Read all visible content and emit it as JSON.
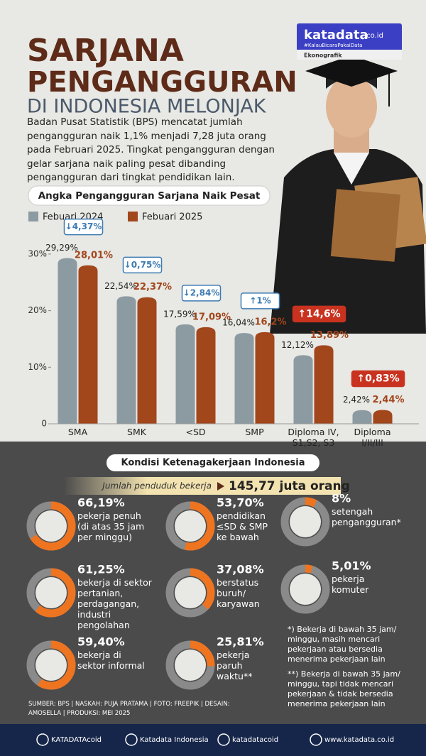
{
  "header": {
    "title_lines": [
      "SARJANA",
      "PENGANGGURAN",
      "DI INDONESIA MELONJAK"
    ],
    "brand": "katadata",
    "brand_suffix": ".co.id",
    "tagline": "#KalauBicaraPakaiData",
    "category": "Ekonografik",
    "intro": "Badan Pusat Statistik (BPS) mencatat jumlah pengangguran naik 1,1% menjadi 7,28 juta orang pada Februari 2025. Tingkat pengangguran dengan gelar sarjana naik paling pesat dibanding pengangguran dari tingkat pendidikan lain."
  },
  "chart_data": {
    "type": "bar",
    "title": "Angka Pengangguran Sarjana Naik Pesat",
    "categories": [
      "SMA",
      "SMK",
      "<SD",
      "SMP",
      "Diploma IV,\nS1,S2, S3",
      "Diploma\nI/II/III"
    ],
    "series": [
      {
        "name": "Febuari 2024",
        "color": "#8c9aa2",
        "values": [
          29.29,
          22.54,
          17.59,
          16.04,
          12.12,
          2.42
        ],
        "value_labels": [
          "29,29%",
          "22,54%",
          "17,59%",
          "16,04%",
          "12,12%",
          "2,42%"
        ]
      },
      {
        "name": "Febuari 2025",
        "color": "#a2461c",
        "values": [
          28.01,
          22.37,
          17.09,
          16.2,
          13.89,
          2.44
        ],
        "value_labels": [
          "28,01%",
          "22,37%",
          "17,09%",
          "16,2%",
          "13,89%",
          "2,44%"
        ]
      }
    ],
    "change_labels": [
      "↓4,37%",
      "↓0,75%",
      "↓2,84%",
      "↑1%",
      "↑14,6%",
      "↑0,83%"
    ],
    "change_styles": [
      "outline",
      "outline",
      "outline",
      "outline",
      "filled",
      "filled"
    ],
    "ylim": [
      0,
      32
    ],
    "yticks": [
      0,
      {
        "value": 10,
        "label": "10%"
      },
      {
        "value": 20,
        "label": "20%"
      },
      {
        "value": 30,
        "label": "30%"
      }
    ],
    "grid": false
  },
  "employment": {
    "title": "Kondisi Ketenagakerjaan Indonesia",
    "workforce_label": "Jumlah penduduk bekerja",
    "workforce_value": "145,77 juta orang",
    "stats": [
      {
        "value": 66.19,
        "label": "66,19%",
        "text": "pekerja penuh\n(di atas 35 jam\nper minggu)"
      },
      {
        "value": 53.7,
        "label": "53,70%",
        "text": "pendidikan\n≤SD & SMP\nke bawah"
      },
      {
        "value": 8,
        "label": "8%",
        "text": "setengah\npengangguran*"
      },
      {
        "value": 61.25,
        "label": "61,25%",
        "text": "bekerja di sektor\npertanian,\nperdagangan,\nindustri\npengolahan"
      },
      {
        "value": 37.08,
        "label": "37,08%",
        "text": "berstatus\nburuh/\nkaryawan"
      },
      {
        "value": 5.01,
        "label": "5,01%",
        "text": "pekerja\nkomuter"
      },
      {
        "value": 59.4,
        "label": "59,40%",
        "text": "bekerja di\nsektor informal"
      },
      {
        "value": 25.81,
        "label": "25,81%",
        "text": "pekerja\nparuh\nwaktu**"
      }
    ],
    "notes": [
      "*) Bekerja di bawah 35 jam/ minggu, masih mencari pekerjaan atau bersedia menerima pekerjaan lain",
      "**) Bekerja di bawah 35 jam/ minggu, tapi tidak mencari pekerjaan & tidak bersedia menerima pekerjaan lain"
    ],
    "credits": "SUMBER: BPS | NASKAH: PUJA PRATAMA | FOTO: FREEPIK | DESAIN: AMOSELLA | PRODUKSI: MEI 2025"
  },
  "footer": {
    "items": [
      "KATADATAcoid",
      "Katadata Indonesia",
      "katadatacoid",
      "www.katadata.co.id"
    ]
  }
}
